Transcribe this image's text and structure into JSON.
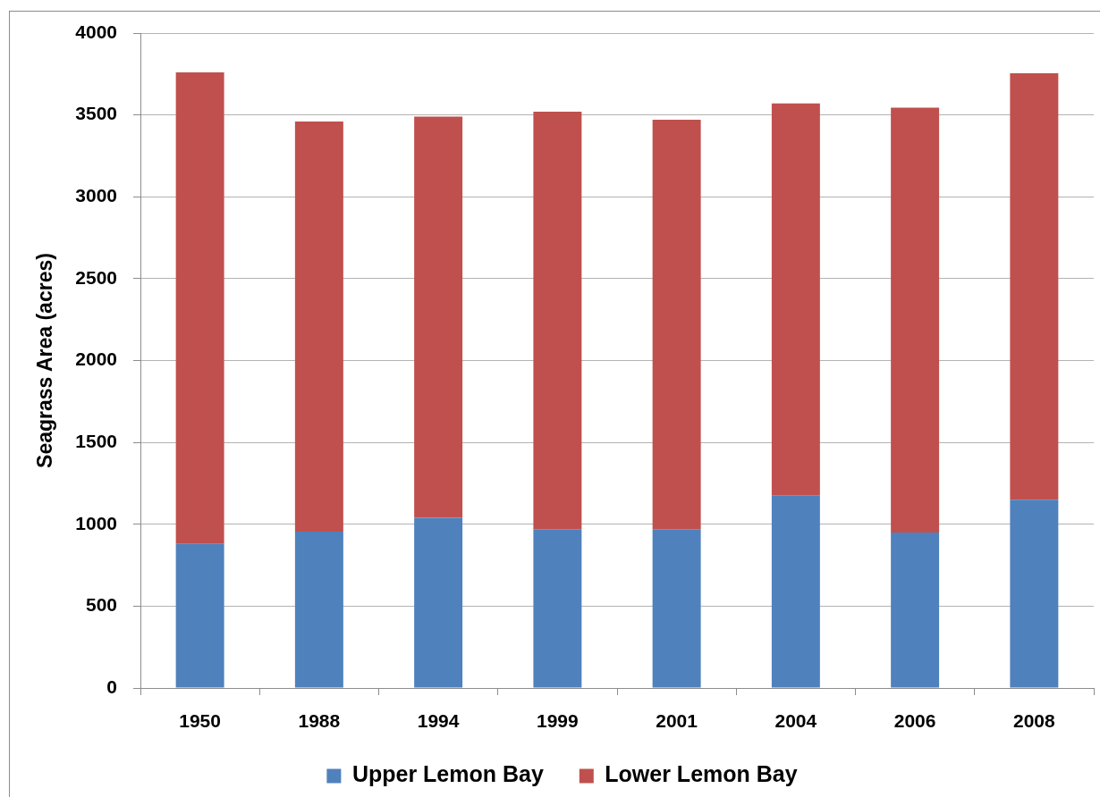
{
  "chart_data": {
    "type": "bar",
    "stacked": true,
    "categories": [
      "1950",
      "1988",
      "1994",
      "1999",
      "2001",
      "2004",
      "2006",
      "2008"
    ],
    "series": [
      {
        "name": "Upper Lemon Bay",
        "color": "#4f81bd",
        "values": [
          880,
          955,
          1040,
          970,
          970,
          1175,
          950,
          1150
        ]
      },
      {
        "name": "Lower Lemon Bay",
        "color": "#c0504d",
        "values": [
          2880,
          2505,
          2450,
          2550,
          2500,
          2395,
          2595,
          2605
        ]
      }
    ],
    "ylabel": "Seagrass Area (acres)",
    "ylim": [
      0,
      4000
    ],
    "yticks": [
      0,
      500,
      1000,
      1500,
      2000,
      2500,
      3000,
      3500,
      4000
    ],
    "grid": "y",
    "legend": "bottom"
  }
}
